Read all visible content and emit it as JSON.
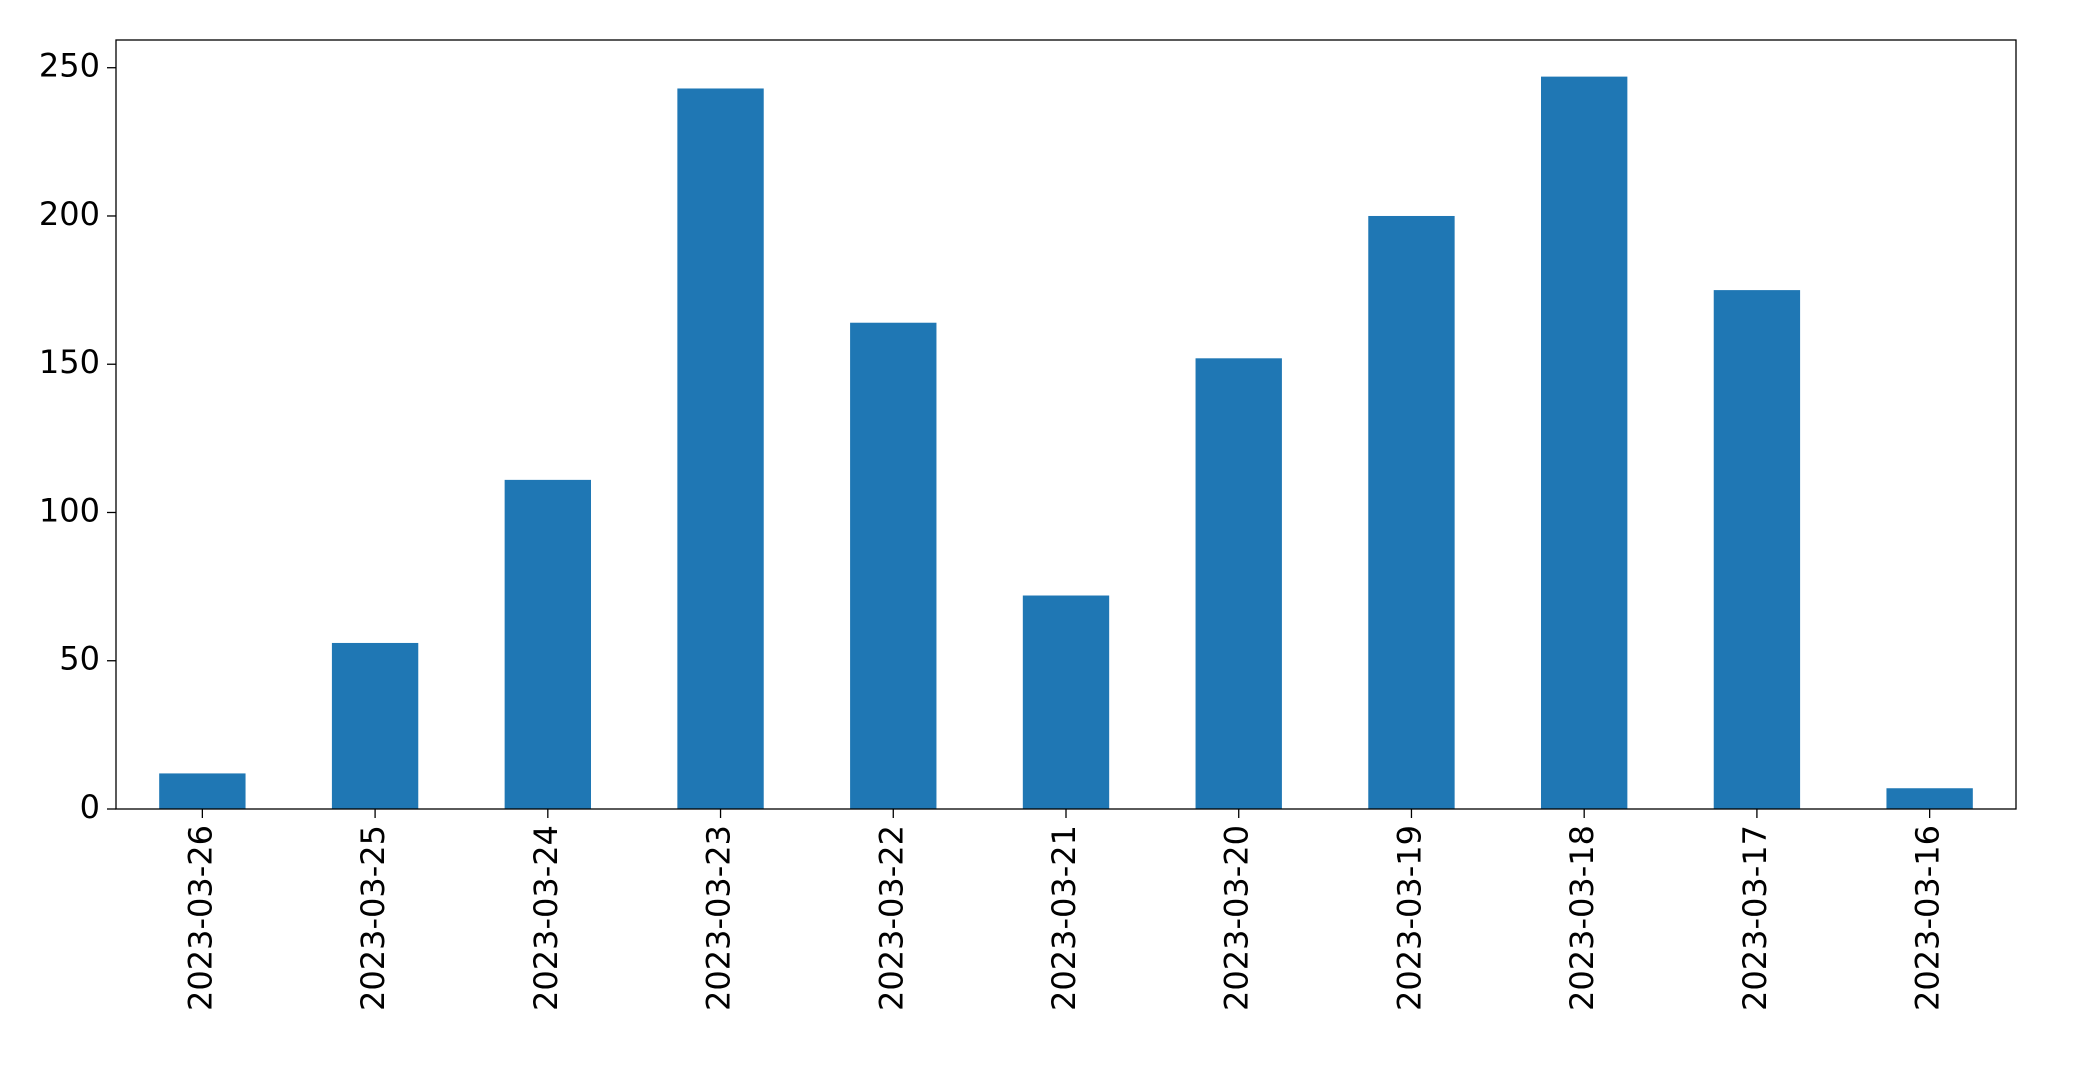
{
  "chart_data": {
    "type": "bar",
    "categories": [
      "2023-03-26",
      "2023-03-25",
      "2023-03-24",
      "2023-03-23",
      "2023-03-22",
      "2023-03-21",
      "2023-03-20",
      "2023-03-19",
      "2023-03-18",
      "2023-03-17",
      "2023-03-16"
    ],
    "values": [
      12,
      56,
      111,
      243,
      164,
      72,
      152,
      200,
      247,
      175,
      7
    ],
    "color": "#1f77b4",
    "ylim": [
      0,
      259.35
    ],
    "yticks": [
      0,
      50,
      100,
      150,
      200,
      250
    ],
    "grid": false
  }
}
